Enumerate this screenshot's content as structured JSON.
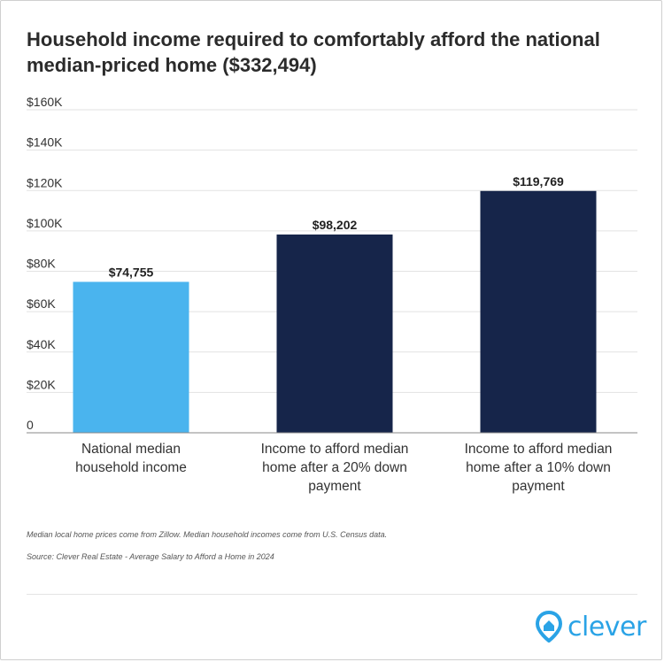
{
  "title": "Household income required to comfortably afford the national median-priced home ($332,494)",
  "chart_data": {
    "type": "bar",
    "title": "Household income required to comfortably afford the national median-priced home ($332,494)",
    "xlabel": "",
    "ylabel": "",
    "ylim": [
      0,
      160000
    ],
    "yticks": [
      0,
      20000,
      40000,
      60000,
      80000,
      100000,
      120000,
      140000,
      160000
    ],
    "ytick_labels": [
      "0",
      "$20K",
      "$40K",
      "$60K",
      "$80K",
      "$100K",
      "$120K",
      "$140K",
      "$160K"
    ],
    "categories": [
      [
        "National median",
        "household income"
      ],
      [
        "Income to afford median",
        "home after a 20% down",
        "payment"
      ],
      [
        "Income to afford median",
        "home after a 10% down",
        "payment"
      ]
    ],
    "values": [
      74755,
      98202,
      119769
    ],
    "data_labels": [
      "$74,755",
      "$98,202",
      "$119,769"
    ],
    "colors": [
      "#4ab4ee",
      "#16254a",
      "#16254a"
    ],
    "grid": true,
    "legend": "none"
  },
  "notes": {
    "note1": "Median local home prices come from Zillow. Median household incomes come from U.S. Census data.",
    "note2": "Source: Clever Real Estate - Average Salary to Afford a Home in 2024"
  },
  "logo": {
    "text": "clever",
    "icon": "clever-house-pin-icon",
    "color": "#2aa3e6"
  }
}
